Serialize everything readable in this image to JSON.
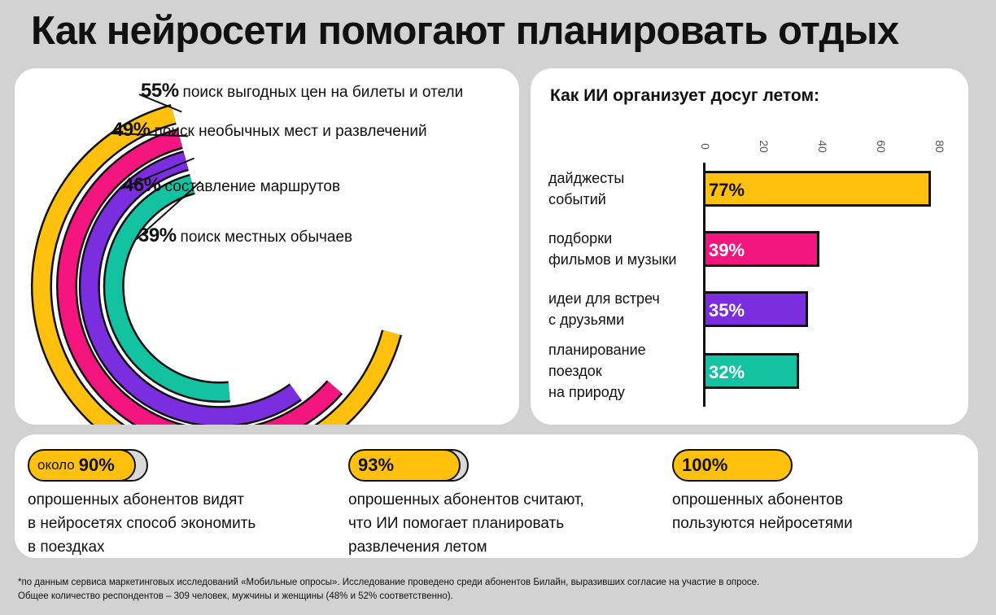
{
  "title": "Как нейросети помогают планировать отдых",
  "colors": {
    "yellow": "#ffc10e",
    "pink": "#f5157f",
    "purple": "#7a2ee0",
    "teal": "#12c2a0",
    "gray": "#d9d9d9"
  },
  "chart_data": [
    {
      "type": "pie",
      "categories": [
        "поиск выгодных цен на билеты и отели",
        "поиск необычных мест и развлечений",
        "составление маршрутов",
        "поиск местных обычаев"
      ],
      "values": [
        55,
        49,
        46,
        39
      ],
      "value_labels": [
        "55%",
        "49%",
        "46%",
        "39%"
      ],
      "title": "",
      "colors": [
        "#ffc10e",
        "#f5157f",
        "#7a2ee0",
        "#12c2a0"
      ]
    },
    {
      "type": "bar",
      "title": "Как ИИ организует досуг летом:",
      "categories": [
        [
          "дайджесты",
          "событий"
        ],
        [
          "подборки",
          "фильмов и музыки"
        ],
        [
          "идеи для встреч",
          "с друзьями"
        ],
        [
          "планирование",
          "поездок",
          "на природу"
        ]
      ],
      "values": [
        77,
        39,
        35,
        32
      ],
      "value_labels": [
        "77%",
        "39%",
        "35%",
        "32%"
      ],
      "xticks": [
        "0",
        "20",
        "40",
        "60",
        "80"
      ],
      "xlim": [
        0,
        80
      ],
      "colors": [
        "#ffc10e",
        "#f5157f",
        "#7a2ee0",
        "#12c2a0"
      ]
    }
  ],
  "stats": [
    {
      "prefix": "около",
      "value": "90%",
      "fill": 0.9,
      "lines": [
        "опрошенных абонентов видят",
        "в нейросетях способ экономить",
        "в поездках"
      ]
    },
    {
      "prefix": "",
      "value": "93%",
      "fill": 0.93,
      "lines": [
        "опрошенных абонентов считают,",
        "что ИИ помогает планировать",
        "развлечения летом"
      ]
    },
    {
      "prefix": "",
      "value": "100%",
      "fill": 1.0,
      "lines": [
        "опрошенных абонентов",
        "пользуются нейросетями"
      ]
    }
  ],
  "footnote": [
    "*по данным сервиса маркетинговых исследований «Мобильные опросы». Исследование проведено среди абонентов Билайн, выразивших согласие на участие в опросе.",
    "Общее количество респондентов – 309 человек, мужчины и женщины (48% и 52% соответственно)."
  ]
}
